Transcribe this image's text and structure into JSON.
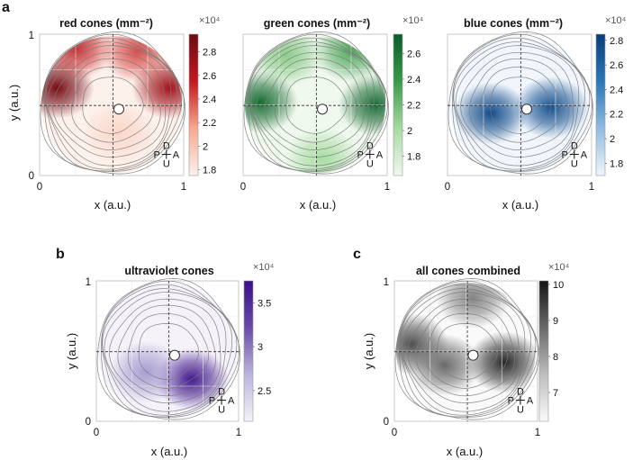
{
  "figure": {
    "panel_labels": [
      "a",
      "b",
      "c"
    ]
  },
  "chart_data": [
    {
      "type": "heatmap",
      "title": "red cones (mm⁻²)",
      "xlabel": "x  (a.u.)",
      "ylabel": "y  (a.u.)",
      "xticks": [
        "0",
        "1"
      ],
      "yticks": [
        "0",
        "1"
      ],
      "xlim": [
        0,
        1
      ],
      "ylim": [
        0,
        1
      ],
      "colorbar": {
        "min": 1.75,
        "max": 2.95,
        "ticks": [
          "1.8",
          "2",
          "2.2",
          "2.4",
          "2.6",
          "2.8"
        ],
        "tick_values": [
          1.8,
          2.0,
          2.2,
          2.4,
          2.6,
          2.8
        ],
        "multiplier": "×10⁴",
        "colors": [
          "#fdf1ec",
          "#f7a98f",
          "#c4181f",
          "#6b0a12"
        ]
      },
      "optic_disc": [
        0.55,
        0.47
      ],
      "orientation_labels": {
        "up": "D",
        "left": "P",
        "right": "A",
        "down": "U"
      },
      "density_peaks": [
        {
          "x": 0.12,
          "y": 0.62,
          "value": 2.9
        },
        {
          "x": 0.9,
          "y": 0.62,
          "value": 2.7
        },
        {
          "x": 0.25,
          "y": 0.9,
          "value": 2.5
        },
        {
          "x": 0.68,
          "y": 0.88,
          "value": 2.4
        },
        {
          "x": 0.55,
          "y": 0.3,
          "value": 1.9
        }
      ]
    },
    {
      "type": "heatmap",
      "title": "green cones (mm⁻²)",
      "xlabel": "x  (a.u.)",
      "ylabel": "",
      "xticks": [
        "0",
        "1"
      ],
      "xlim": [
        0,
        1
      ],
      "ylim": [
        0,
        1
      ],
      "colorbar": {
        "min": 1.65,
        "max": 2.75,
        "ticks": [
          "1.8",
          "2",
          "2.2",
          "2.4",
          "2.6"
        ],
        "tick_values": [
          1.8,
          2.0,
          2.2,
          2.4,
          2.6
        ],
        "multiplier": "×10⁴",
        "colors": [
          "#f0f9ee",
          "#a6dba0",
          "#3a9a4a",
          "#0a5c2a"
        ]
      },
      "optic_disc": [
        0.55,
        0.47
      ],
      "orientation_labels": {
        "up": "D",
        "left": "P",
        "right": "A",
        "down": "U"
      },
      "density_peaks": [
        {
          "x": 0.12,
          "y": 0.52,
          "value": 2.65
        },
        {
          "x": 0.92,
          "y": 0.5,
          "value": 2.65
        },
        {
          "x": 0.75,
          "y": 0.88,
          "value": 2.3
        },
        {
          "x": 0.3,
          "y": 0.85,
          "value": 2.1
        },
        {
          "x": 0.55,
          "y": 0.12,
          "value": 2.0
        }
      ]
    },
    {
      "type": "heatmap",
      "title": "blue cones (mm⁻²)",
      "xlabel": "x  (a.u.)",
      "ylabel": "",
      "xticks": [
        "0",
        "1"
      ],
      "xlim": [
        0,
        1
      ],
      "ylim": [
        0,
        1
      ],
      "colorbar": {
        "min": 1.7,
        "max": 2.85,
        "ticks": [
          "1.8",
          "2",
          "2.2",
          "2.4",
          "2.6",
          "2.8"
        ],
        "tick_values": [
          1.8,
          2.0,
          2.2,
          2.4,
          2.6,
          2.8
        ],
        "multiplier": "×10⁴",
        "colors": [
          "#f0f6fc",
          "#8fbce0",
          "#2a76b8",
          "#0a3d7a"
        ]
      },
      "optic_disc": [
        0.55,
        0.47
      ],
      "orientation_labels": {
        "up": "D",
        "left": "P",
        "right": "A",
        "down": "U"
      },
      "density_peaks": [
        {
          "x": 0.3,
          "y": 0.44,
          "value": 2.75
        },
        {
          "x": 0.72,
          "y": 0.48,
          "value": 2.7
        }
      ]
    },
    {
      "type": "heatmap",
      "title": "ultraviolet cones",
      "xlabel": "x  (a.u.)",
      "ylabel": "y  (a.u.)",
      "xticks": [
        "0",
        "1"
      ],
      "yticks": [
        "0",
        "1"
      ],
      "xlim": [
        0,
        1
      ],
      "ylim": [
        0,
        1
      ],
      "colorbar": {
        "min": 2.15,
        "max": 3.75,
        "ticks": [
          "2.5",
          "3",
          "3.5"
        ],
        "tick_values": [
          2.5,
          3.0,
          3.5
        ],
        "multiplier": "×10⁴",
        "colors": [
          "#f5f2fa",
          "#bbb5dc",
          "#6a4aaa",
          "#3a0f88"
        ]
      },
      "optic_disc": [
        0.55,
        0.47
      ],
      "orientation_labels": {
        "up": "D",
        "left": "P",
        "right": "A",
        "down": "U"
      },
      "density_peaks": [
        {
          "x": 0.67,
          "y": 0.3,
          "value": 3.65
        },
        {
          "x": 0.35,
          "y": 0.35,
          "value": 2.8
        }
      ]
    },
    {
      "type": "heatmap",
      "title": "all cones combined",
      "xlabel": "x  (a.u.)",
      "ylabel": "y  (a.u.)",
      "xticks": [
        "0",
        "1"
      ],
      "yticks": [
        "0",
        "1"
      ],
      "xlim": [
        0,
        1
      ],
      "ylim": [
        0,
        1
      ],
      "colorbar": {
        "min": 6.2,
        "max": 10.1,
        "ticks": [
          "7",
          "8",
          "9",
          "10"
        ],
        "tick_values": [
          7,
          8,
          9,
          10
        ],
        "multiplier": "×10⁴",
        "colors": [
          "#fafafa",
          "#bdbdbd",
          "#6a6a6a",
          "#141414"
        ]
      },
      "optic_disc": [
        0.55,
        0.47
      ],
      "orientation_labels": {
        "up": "D",
        "left": "P",
        "right": "A",
        "down": "U"
      },
      "density_peaks": [
        {
          "x": 0.77,
          "y": 0.42,
          "value": 9.8
        },
        {
          "x": 0.12,
          "y": 0.55,
          "value": 9.2
        },
        {
          "x": 0.35,
          "y": 0.4,
          "value": 8.8
        },
        {
          "x": 0.55,
          "y": 0.88,
          "value": 8.4
        }
      ]
    }
  ]
}
